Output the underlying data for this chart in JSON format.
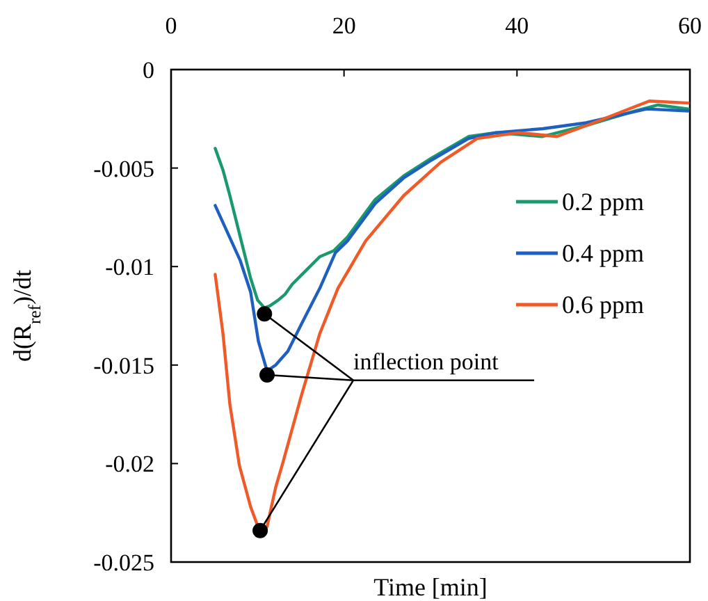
{
  "chart_data": {
    "type": "line",
    "xlabel": "Time [min]",
    "ylabel": "d(R$_{ref}$)/dt",
    "xlim": [
      0,
      60
    ],
    "xticks": [
      0,
      20,
      40,
      60
    ],
    "ylim": [
      -0.025,
      0
    ],
    "yticks": [
      -0.025,
      -0.02,
      -0.015,
      -0.01,
      -0.005,
      0
    ],
    "legend": "top right",
    "grid": false,
    "annotations": [
      {
        "text": "inflection point",
        "x": 10.3,
        "y": -0.0234
      }
    ],
    "series": [
      {
        "name": "0.2 ppm",
        "color": "#1a9a6c",
        "x": [
          5.1,
          6.0,
          6.8,
          7.6,
          8.4,
          9.2,
          10.0,
          10.8,
          11.4,
          12.4,
          13.2,
          14.0,
          15.6,
          17.2,
          18.8,
          20.4,
          23.6,
          26.9,
          30.1,
          34.4,
          37.6,
          42.9,
          48.3,
          53.7,
          56.3,
          59.8
        ],
        "values": [
          -0.004,
          -0.0051,
          -0.0064,
          -0.0078,
          -0.0092,
          -0.0106,
          -0.0117,
          -0.0121,
          -0.012,
          -0.0117,
          -0.0114,
          -0.0109,
          -0.0102,
          -0.0095,
          -0.0092,
          -0.0085,
          -0.0066,
          -0.0054,
          -0.0045,
          -0.0034,
          -0.0032,
          -0.0034,
          -0.0028,
          -0.0021,
          -0.0018,
          -0.002
        ]
      },
      {
        "name": "0.4 ppm",
        "color": "#1f5fbf",
        "x": [
          5.1,
          8.0,
          9.2,
          10.1,
          11.1,
          12.1,
          13.5,
          15.1,
          17.2,
          19.0,
          20.4,
          23.6,
          26.9,
          30.1,
          34.4,
          37.6,
          43.0,
          48.0,
          55.0,
          59.8
        ],
        "values": [
          -0.0069,
          -0.0097,
          -0.0113,
          -0.0138,
          -0.0153,
          -0.015,
          -0.0143,
          -0.0129,
          -0.0111,
          -0.0093,
          -0.0087,
          -0.0068,
          -0.0055,
          -0.0046,
          -0.0035,
          -0.0032,
          -0.003,
          -0.0027,
          -0.002,
          -0.0021
        ]
      },
      {
        "name": "0.6 ppm",
        "color": "#f05a28",
        "x": [
          5.1,
          6.0,
          6.8,
          7.9,
          9.2,
          10.3,
          11.1,
          12.1,
          12.9,
          15.1,
          17.2,
          19.3,
          22.5,
          26.9,
          31.2,
          35.4,
          40.2,
          44.6,
          48.3,
          55.3,
          59.8
        ],
        "values": [
          -0.0104,
          -0.0134,
          -0.017,
          -0.0201,
          -0.0222,
          -0.0235,
          -0.0232,
          -0.0212,
          -0.02,
          -0.0165,
          -0.0134,
          -0.0111,
          -0.0087,
          -0.0064,
          -0.0047,
          -0.0035,
          -0.0032,
          -0.0034,
          -0.0028,
          -0.0016,
          -0.0017
        ]
      },
      {
        "type": "scatter",
        "color": "#000000",
        "marker": "circle",
        "x": [
          10.8,
          11.1,
          10.3
        ],
        "values": [
          -0.0124,
          -0.0155,
          -0.0234
        ]
      }
    ]
  }
}
